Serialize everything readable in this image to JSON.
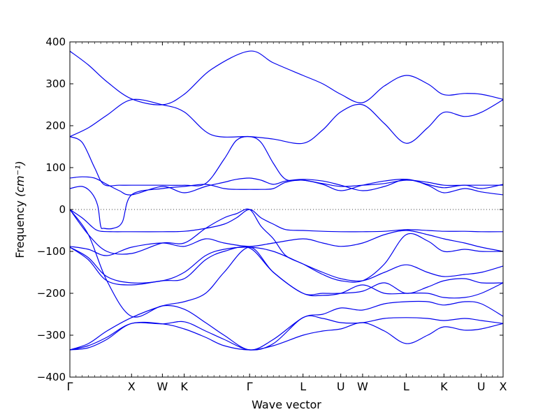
{
  "chart_data": {
    "type": "line",
    "xlabel": "Wave vector",
    "ylabel": "Frequency",
    "ylabel_unit": "(cm⁻¹)",
    "ylim": [
      -400,
      400
    ],
    "yticks": [
      -400,
      -300,
      -200,
      -100,
      0,
      100,
      200,
      300,
      400
    ],
    "ytick_labels": [
      "−400",
      "−300",
      "−200",
      "−100",
      "0",
      "100",
      "200",
      "300",
      "400"
    ],
    "x_points": [
      {
        "label": "Γ",
        "x": 0
      },
      {
        "label": "X",
        "x": 1
      },
      {
        "label": "W",
        "x": 1.5
      },
      {
        "label": "K",
        "x": 1.854
      },
      {
        "label": "Γ",
        "x": 2.914
      },
      {
        "label": "L",
        "x": 3.78
      },
      {
        "label": "U",
        "x": 4.392
      },
      {
        "label": "W",
        "x": 4.746
      },
      {
        "label": "L",
        "x": 5.453
      },
      {
        "label": "K",
        "x": 6.065
      },
      {
        "label": "U",
        "x": 6.67
      },
      {
        "label": "X",
        "x": 7.024
      }
    ],
    "zero_line": true,
    "line_color": "#0000ee",
    "series": [
      {
        "x": [
          0,
          0.3,
          0.6,
          1,
          1.5,
          1.854,
          2.3,
          2.914,
          3.3,
          3.78,
          4.1,
          4.392,
          4.746,
          5.1,
          5.453,
          5.8,
          6.065,
          6.4,
          6.67,
          7.024
        ],
        "y": [
          378,
          345,
          305,
          264,
          250,
          275,
          335,
          378,
          350,
          320,
          300,
          275,
          255,
          295,
          320,
          300,
          274,
          277,
          275,
          263
        ]
      },
      {
        "x": [
          0,
          0.3,
          0.6,
          1,
          1.5,
          1.854,
          2.3,
          2.914,
          3.3,
          3.78,
          4.1,
          4.392,
          4.746,
          5.1,
          5.453,
          5.8,
          6.065,
          6.4,
          6.67,
          7.024
        ],
        "y": [
          174,
          195,
          225,
          262,
          250,
          233,
          178,
          174,
          168,
          158,
          190,
          233,
          250,
          205,
          158,
          195,
          232,
          222,
          232,
          262
        ]
      },
      {
        "x": [
          0,
          0.2,
          0.4,
          0.55,
          0.8,
          1,
          1.5,
          1.854,
          2.2,
          2.5,
          2.7,
          2.914,
          3.1,
          3.3,
          3.5,
          3.78,
          4.1,
          4.392,
          4.746,
          5.1,
          5.453,
          5.8,
          6.065,
          6.4,
          6.67,
          7.024
        ],
        "y": [
          174,
          160,
          100,
          60,
          58,
          58,
          58,
          58,
          62,
          120,
          165,
          174,
          160,
          110,
          72,
          70,
          62,
          55,
          58,
          62,
          70,
          65,
          58,
          58,
          58,
          58
        ]
      },
      {
        "x": [
          0,
          0.2,
          0.4,
          0.6,
          0.8,
          1,
          1.5,
          1.854,
          2.2,
          2.5,
          2.7,
          2.914,
          3.1,
          3.3,
          3.5,
          3.78,
          4.1,
          4.392,
          4.746,
          5.1,
          5.453,
          5.8,
          6.065,
          6.4,
          6.67,
          7.024
        ],
        "y": [
          75,
          78,
          75,
          60,
          45,
          35,
          55,
          40,
          55,
          65,
          72,
          75,
          70,
          60,
          68,
          72,
          68,
          58,
          45,
          55,
          72,
          58,
          40,
          50,
          42,
          35
        ]
      },
      {
        "x": [
          0,
          0.2,
          0.35,
          0.45,
          0.5,
          0.55,
          0.7,
          0.85,
          1,
          1.5,
          1.854,
          2.2,
          2.5,
          2.7,
          2.914,
          3.1,
          3.3,
          3.5,
          3.78,
          4.1,
          4.392,
          4.746,
          5.1,
          5.453,
          5.8,
          6.065,
          6.4,
          6.67,
          7.024
        ],
        "y": [
          50,
          55,
          40,
          10,
          -40,
          -45,
          -45,
          -30,
          35,
          50,
          55,
          60,
          50,
          48,
          48,
          48,
          50,
          65,
          70,
          60,
          45,
          58,
          68,
          72,
          60,
          52,
          58,
          50,
          60
        ]
      },
      {
        "x": [
          0,
          0.2,
          0.35,
          0.42,
          0.5,
          0.7,
          0.9,
          1,
          1.5,
          1.854,
          2.2,
          2.5,
          2.7,
          2.914,
          3.1,
          3.3,
          3.5,
          3.78,
          4.1,
          4.392,
          4.746,
          5.1,
          5.453,
          5.8,
          6.065,
          6.4,
          6.67,
          7.024
        ],
        "y": [
          0,
          -20,
          -40,
          -48,
          -52,
          -53,
          -53,
          -53,
          -53,
          -52,
          -45,
          -35,
          -20,
          0,
          -20,
          -35,
          -48,
          -50,
          -52,
          -53,
          -53,
          -52,
          -48,
          -50,
          -52,
          -52,
          -53,
          -53
        ]
      },
      {
        "x": [
          0,
          0.3,
          0.6,
          1,
          1.5,
          1.854,
          2.2,
          2.5,
          2.7,
          2.914,
          3.1,
          3.3,
          3.5,
          3.78,
          4.1,
          4.392,
          4.746,
          5.1,
          5.453,
          5.8,
          6.065,
          6.4,
          6.67,
          7.024
        ],
        "y": [
          0,
          -60,
          -100,
          -105,
          -80,
          -80,
          -45,
          -20,
          -10,
          0,
          -40,
          -70,
          -110,
          -130,
          -155,
          -170,
          -170,
          -130,
          -60,
          -75,
          -100,
          -95,
          -100,
          -100
        ]
      },
      {
        "x": [
          0,
          0.3,
          0.6,
          1,
          1.5,
          1.854,
          2.2,
          2.5,
          2.914,
          3.3,
          3.78,
          4.1,
          4.392,
          4.746,
          5.1,
          5.453,
          5.8,
          6.065,
          6.4,
          6.67,
          7.024
        ],
        "y": [
          -88,
          -95,
          -110,
          -90,
          -80,
          -88,
          -70,
          -80,
          -88,
          -80,
          -70,
          -80,
          -88,
          -80,
          -60,
          -50,
          -60,
          -70,
          -80,
          -90,
          -100
        ]
      },
      {
        "x": [
          0,
          0.3,
          0.6,
          1,
          1.5,
          1.854,
          2.2,
          2.5,
          2.914,
          3.3,
          3.78,
          4.1,
          4.392,
          4.746,
          5.1,
          5.453,
          5.8,
          6.065,
          6.4,
          6.67,
          7.024
        ],
        "y": [
          -90,
          -115,
          -160,
          -175,
          -170,
          -150,
          -110,
          -95,
          -90,
          -100,
          -130,
          -150,
          -165,
          -170,
          -150,
          -132,
          -150,
          -160,
          -155,
          -150,
          -135
        ]
      },
      {
        "x": [
          0,
          0.3,
          0.6,
          1,
          1.5,
          1.854,
          2.2,
          2.5,
          2.914,
          3.3,
          3.78,
          4.1,
          4.392,
          4.746,
          5.1,
          5.453,
          5.8,
          6.065,
          6.4,
          6.67,
          7.024
        ],
        "y": [
          -90,
          -120,
          -170,
          -180,
          -170,
          -165,
          -120,
          -100,
          -92,
          -150,
          -200,
          -200,
          -200,
          -195,
          -175,
          -200,
          -185,
          -170,
          -165,
          -175,
          -175
        ]
      },
      {
        "x": [
          0,
          0.3,
          0.6,
          1,
          1.5,
          1.854,
          2.2,
          2.5,
          2.914,
          3.3,
          3.78,
          4.1,
          4.392,
          4.746,
          5.1,
          5.453,
          5.8,
          6.065,
          6.4,
          6.67,
          7.024
        ],
        "y": [
          -335,
          -320,
          -290,
          -258,
          -230,
          -220,
          -200,
          -150,
          -90,
          -150,
          -200,
          -205,
          -200,
          -180,
          -200,
          -200,
          -200,
          -210,
          -210,
          -200,
          -175
        ]
      },
      {
        "x": [
          0,
          0.3,
          0.6,
          1,
          1.5,
          1.854,
          2.2,
          2.5,
          2.914,
          3.3,
          3.78,
          4.1,
          4.392,
          4.746,
          5.1,
          5.453,
          5.8,
          6.065,
          6.4,
          6.67,
          7.024
        ],
        "y": [
          0,
          -60,
          -170,
          -255,
          -230,
          -238,
          -270,
          -300,
          -335,
          -310,
          -258,
          -250,
          -235,
          -240,
          -225,
          -220,
          -220,
          -228,
          -220,
          -225,
          -255
        ]
      },
      {
        "x": [
          0,
          0.3,
          0.6,
          1,
          1.5,
          1.854,
          2.2,
          2.5,
          2.914,
          3.3,
          3.78,
          4.1,
          4.392,
          4.746,
          5.1,
          5.453,
          5.8,
          6.065,
          6.4,
          6.67,
          7.024
        ],
        "y": [
          -335,
          -325,
          -305,
          -272,
          -273,
          -268,
          -290,
          -310,
          -335,
          -320,
          -258,
          -260,
          -270,
          -270,
          -260,
          -258,
          -260,
          -265,
          -260,
          -265,
          -272
        ]
      },
      {
        "x": [
          0,
          0.3,
          0.6,
          1,
          1.5,
          1.854,
          2.2,
          2.5,
          2.914,
          3.3,
          3.78,
          4.1,
          4.392,
          4.746,
          5.1,
          5.453,
          5.8,
          6.065,
          6.4,
          6.67,
          7.024
        ],
        "y": [
          -335,
          -330,
          -310,
          -272,
          -273,
          -285,
          -305,
          -325,
          -335,
          -325,
          -300,
          -290,
          -285,
          -270,
          -290,
          -320,
          -300,
          -280,
          -288,
          -285,
          -272
        ]
      }
    ]
  }
}
